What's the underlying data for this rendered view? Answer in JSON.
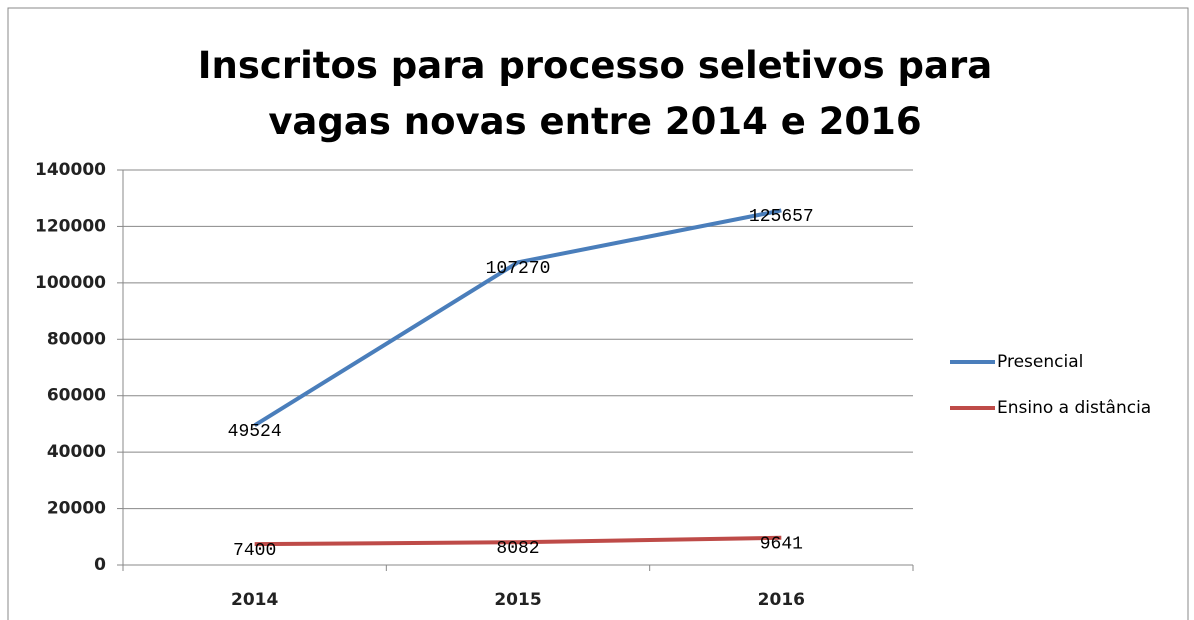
{
  "chart_data": {
    "type": "line",
    "title": "Inscritos para processo seletivos para vagas novas entre 2014 e 2016",
    "categories": [
      "2014",
      "2015",
      "2016"
    ],
    "series": [
      {
        "name": "Presencial",
        "color": "#4a7ebb",
        "values": [
          49524,
          107270,
          125657
        ]
      },
      {
        "name": "Ensino a distância",
        "color": "#be4b48",
        "values": [
          7400,
          8082,
          9641
        ]
      }
    ],
    "ylim": [
      0,
      140000
    ],
    "yticks": [
      0,
      20000,
      40000,
      60000,
      80000,
      100000,
      120000,
      140000
    ],
    "grid": true,
    "legend": "right",
    "data_labels": true
  }
}
